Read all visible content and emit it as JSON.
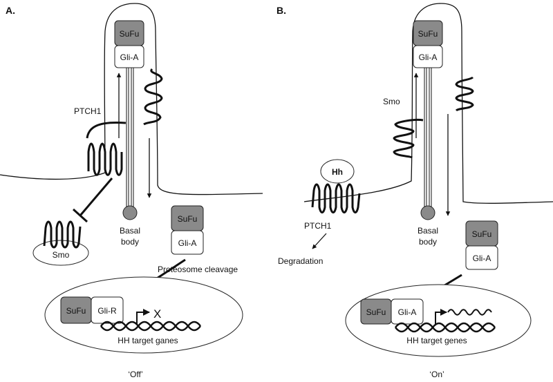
{
  "panels": {
    "a": {
      "letter": "A.",
      "state": "‘Off’",
      "cilium_sufu": "SuFu",
      "cilium_gli": "Gli-A",
      "ptch1": "PTCH1",
      "smo": "Smo",
      "basal_body": [
        "Basal",
        "body"
      ],
      "cyto_sufu": "SuFu",
      "cyto_gli": "Gli-A",
      "cleavage": "Proteosome cleavage",
      "nucleus_sufu": "SuFu",
      "nucleus_gli": "Gli-R",
      "block_mark": "X",
      "genes": "HH target ganes"
    },
    "b": {
      "letter": "B.",
      "state": "‘On’",
      "cilium_sufu": "SuFu",
      "cilium_gli": "Gli-A",
      "smo": "Smo",
      "hh": "Hh",
      "ptch1": "PTCH1",
      "degradation": "Degradation",
      "basal_body": [
        "Basal",
        "body"
      ],
      "cyto_sufu": "SuFu",
      "cyto_gli": "Gli-A",
      "nucleus_sufu": "SuFu",
      "nucleus_gli": "Gli-A",
      "genes": "HH target genes"
    }
  },
  "colors": {
    "sufu_fill": "#8a8a8a",
    "line": "#111111"
  }
}
